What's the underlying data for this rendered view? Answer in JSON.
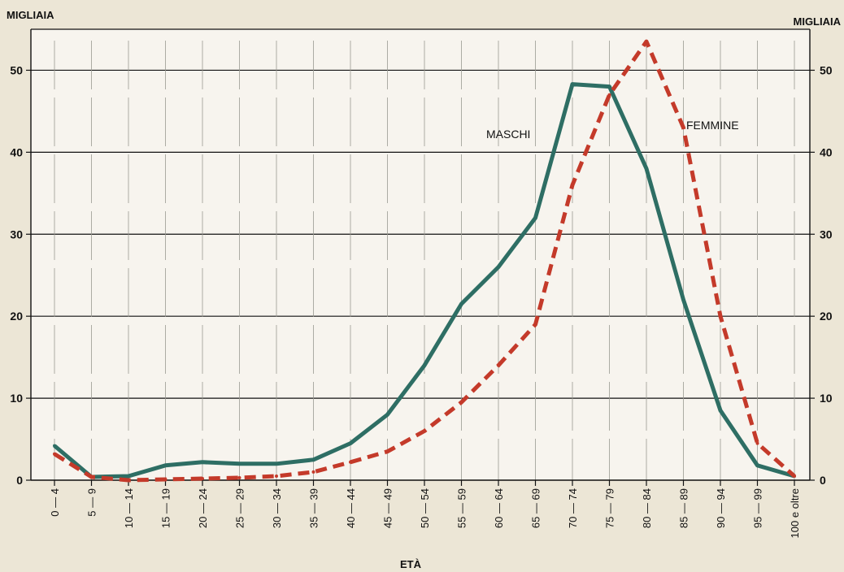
{
  "chart_data": {
    "type": "line",
    "xlabel": "ETÀ",
    "ylabel_left": "MIGLIAIA",
    "ylabel_right": "MIGLIAIA",
    "ylim": [
      0,
      55
    ],
    "yticks": [
      0,
      10,
      20,
      30,
      40,
      50
    ],
    "grid": true,
    "categories": [
      "0 — 4",
      "5 — 9",
      "10 — 14",
      "15 — 19",
      "20 — 24",
      "25 — 29",
      "30 — 34",
      "35 — 39",
      "40 — 44",
      "45 — 49",
      "50 — 54",
      "55 — 59",
      "60 — 64",
      "65 — 69",
      "70 — 74",
      "75 — 79",
      "80 — 84",
      "85 — 89",
      "90 — 94",
      "95 — 99",
      "100 e oltre"
    ],
    "series": [
      {
        "name": "MASCHI",
        "color": "#2e6e64",
        "style": "solid",
        "values": [
          4.2,
          0.4,
          0.5,
          1.8,
          2.2,
          2.0,
          2.0,
          2.5,
          4.5,
          8.0,
          14.0,
          21.5,
          26.0,
          32.0,
          48.3,
          48.0,
          38.0,
          22.0,
          8.5,
          1.8,
          0.5
        ]
      },
      {
        "name": "FEMMINE",
        "color": "#c43a2a",
        "style": "dashed",
        "values": [
          3.2,
          0.4,
          0.0,
          0.1,
          0.2,
          0.3,
          0.5,
          1.0,
          2.2,
          3.5,
          6.0,
          9.5,
          14.0,
          19.0,
          36.0,
          47.0,
          53.5,
          43.0,
          20.0,
          4.5,
          0.5
        ]
      }
    ]
  }
}
